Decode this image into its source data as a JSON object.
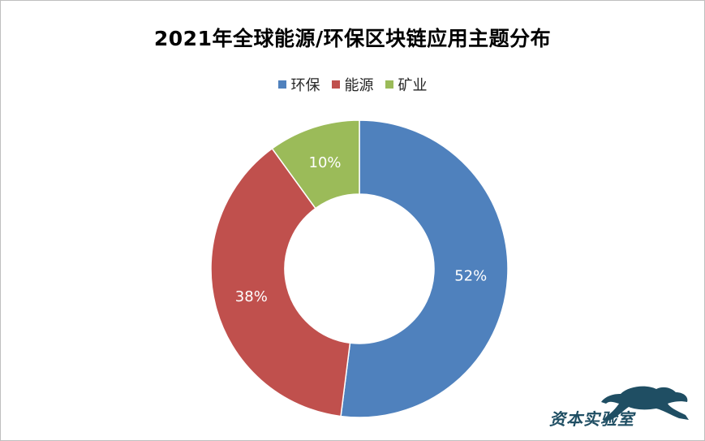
{
  "chart_data": {
    "type": "pie",
    "title": "2021年全球能源/环保区块链应用主题分布",
    "categories": [
      "环保",
      "能源",
      "矿业"
    ],
    "values": [
      52,
      38,
      10
    ],
    "labels": [
      "52%",
      "38%",
      "10%"
    ],
    "colors": [
      "#4f81bd",
      "#c0504d",
      "#9bbb59"
    ],
    "legend_position": "top",
    "donut": true
  },
  "watermark": {
    "text": "资本实验室"
  }
}
